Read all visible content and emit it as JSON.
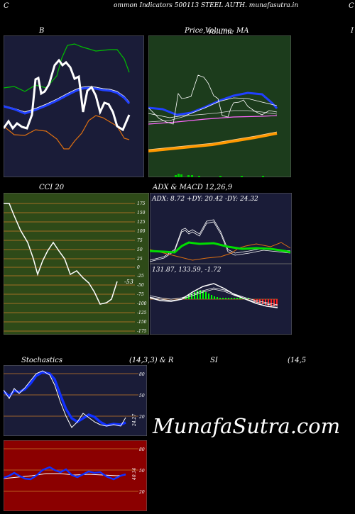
{
  "header": {
    "left_char": "C",
    "title": "ommon  Indicators 500113 STEEL AUTH. munafasutra.in",
    "right_char": "C"
  },
  "panels": {
    "bollinger": {
      "title": "B"
    },
    "price": {
      "title": "Price,",
      "overlay_a": "Volume",
      "overlay_b": "Volume",
      "suffix": "MA"
    },
    "edge": {
      "title": "I"
    },
    "cci": {
      "title": "CCI 20",
      "value_label": "-53",
      "ticks": [
        "175",
        "150",
        "125",
        "100",
        "75",
        "50",
        "25",
        "0",
        "-25",
        "-50",
        "-75",
        "-100",
        "-125",
        "-150",
        "-175"
      ]
    },
    "adx_macd": {
      "title": "ADX  & MACD 12,26,9",
      "adx_text": "ADX: 8.72  +DY: 20.42  -DY: 24.32",
      "macd_text": "131.87,  133.59,  -1.72"
    },
    "stochastics": {
      "title_left": "Stochastics",
      "title_mid": "(14,3,3) & R",
      "title_rsi": "SI",
      "title_right": "(14,5",
      "ticks": [
        "80",
        "50",
        "20"
      ],
      "value_label": "24.27"
    },
    "rsi": {
      "ticks": [
        "80",
        "50",
        "20"
      ],
      "value_label": "40.14"
    }
  },
  "watermark": "MunafaSutra.com",
  "colors": {
    "navy": "#1a1c38",
    "green_panel": "#1c3c1c",
    "red_panel": "#8b0000",
    "cci_bg": "#2e4a18",
    "grid_orange": "#c87a28"
  }
}
